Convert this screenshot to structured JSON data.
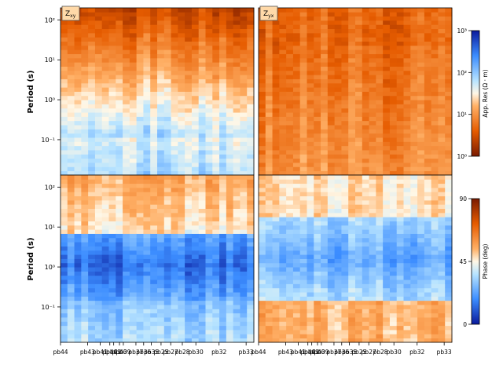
{
  "figure": {
    "component_labels": [
      "Z",
      "xy",
      "Z",
      "yx"
    ],
    "ylabel": "Period (s)",
    "colorbar_labels": {
      "resistivity": "App. Res (Ω · m)",
      "phase": "Phase (deg)"
    }
  },
  "chart_data": {
    "type": "heatmap",
    "x_station_labels": [
      "pb44",
      "pb43",
      "pb41",
      "pb40",
      "pb41",
      "pb40",
      "pb39",
      "pb37",
      "pb36",
      "pb35",
      "pb25",
      "pb27",
      "pb28",
      "pb30",
      "pb32",
      "pb33"
    ],
    "y_axis": {
      "scale": "log",
      "range_s": [
        0.013,
        200
      ],
      "ticks": [
        0.1,
        1,
        10,
        100
      ],
      "tick_labels": [
        "10⁻¹",
        "10⁰",
        "10¹",
        "10²"
      ]
    },
    "panels": [
      {
        "name": "Zxy apparent resistivity",
        "row": 0,
        "col": 0,
        "kind": "res"
      },
      {
        "name": "Zyx apparent resistivity",
        "row": 0,
        "col": 1,
        "kind": "res"
      },
      {
        "name": "Zxy phase",
        "row": 1,
        "col": 0,
        "kind": "phase"
      },
      {
        "name": "Zyx phase",
        "row": 1,
        "col": 1,
        "kind": "phase"
      }
    ],
    "colorbars": [
      {
        "kind": "res",
        "scale": "log",
        "min": 1,
        "max": 1000,
        "ticks": [
          1,
          10,
          100,
          1000
        ],
        "tick_labels": [
          "10⁰",
          "10¹",
          "10²",
          "10³"
        ]
      },
      {
        "kind": "phase",
        "scale": "linear",
        "min": 0,
        "max": 90,
        "ticks": [
          0,
          45,
          90
        ],
        "tick_labels": [
          "0",
          "45",
          "90"
        ]
      }
    ],
    "grid": false
  }
}
